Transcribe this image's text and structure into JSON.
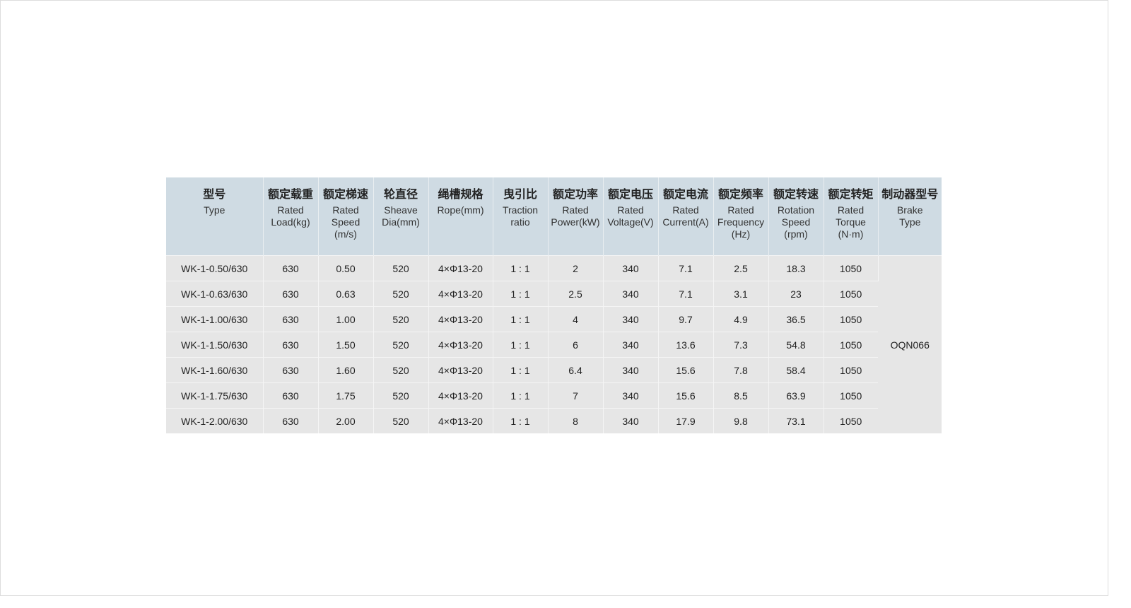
{
  "headers": [
    {
      "zh": "型号",
      "en": "Type"
    },
    {
      "zh": "额定载重",
      "en": "Rated Load(kg)"
    },
    {
      "zh": "额定梯速",
      "en": "Rated Speed (m/s)"
    },
    {
      "zh": "轮直径",
      "en": "Sheave Dia(mm)"
    },
    {
      "zh": "绳槽规格",
      "en": "Rope(mm)"
    },
    {
      "zh": "曳引比",
      "en": "Traction ratio"
    },
    {
      "zh": "额定功率",
      "en": "Rated Power(kW)"
    },
    {
      "zh": "额定电压",
      "en": "Rated Voltage(V)"
    },
    {
      "zh": "额定电流",
      "en": "Rated Current(A)"
    },
    {
      "zh": "额定频率",
      "en": "Rated Frequency (Hz)"
    },
    {
      "zh": "额定转速",
      "en": "Rotation Speed (rpm)"
    },
    {
      "zh": "额定转矩",
      "en": "Rated Torque (N·m)"
    },
    {
      "zh": "制动器型号",
      "en": "Brake Type"
    }
  ],
  "rows": [
    [
      "WK-1-0.50/630",
      "630",
      "0.50",
      "520",
      "4×Φ13-20",
      "1 : 1",
      "2",
      "340",
      "7.1",
      "2.5",
      "18.3",
      "1050"
    ],
    [
      "WK-1-0.63/630",
      "630",
      "0.63",
      "520",
      "4×Φ13-20",
      "1 : 1",
      "2.5",
      "340",
      "7.1",
      "3.1",
      "23",
      "1050"
    ],
    [
      "WK-1-1.00/630",
      "630",
      "1.00",
      "520",
      "4×Φ13-20",
      "1 : 1",
      "4",
      "340",
      "9.7",
      "4.9",
      "36.5",
      "1050"
    ],
    [
      "WK-1-1.50/630",
      "630",
      "1.50",
      "520",
      "4×Φ13-20",
      "1 : 1",
      "6",
      "340",
      "13.6",
      "7.3",
      "54.8",
      "1050"
    ],
    [
      "WK-1-1.60/630",
      "630",
      "1.60",
      "520",
      "4×Φ13-20",
      "1 : 1",
      "6.4",
      "340",
      "15.6",
      "7.8",
      "58.4",
      "1050"
    ],
    [
      "WK-1-1.75/630",
      "630",
      "1.75",
      "520",
      "4×Φ13-20",
      "1 : 1",
      "7",
      "340",
      "15.6",
      "8.5",
      "63.9",
      "1050"
    ],
    [
      "WK-1-2.00/630",
      "630",
      "2.00",
      "520",
      "4×Φ13-20",
      "1 : 1",
      "8",
      "340",
      "17.9",
      "9.8",
      "73.1",
      "1050"
    ]
  ],
  "brake_type": "OQN066"
}
